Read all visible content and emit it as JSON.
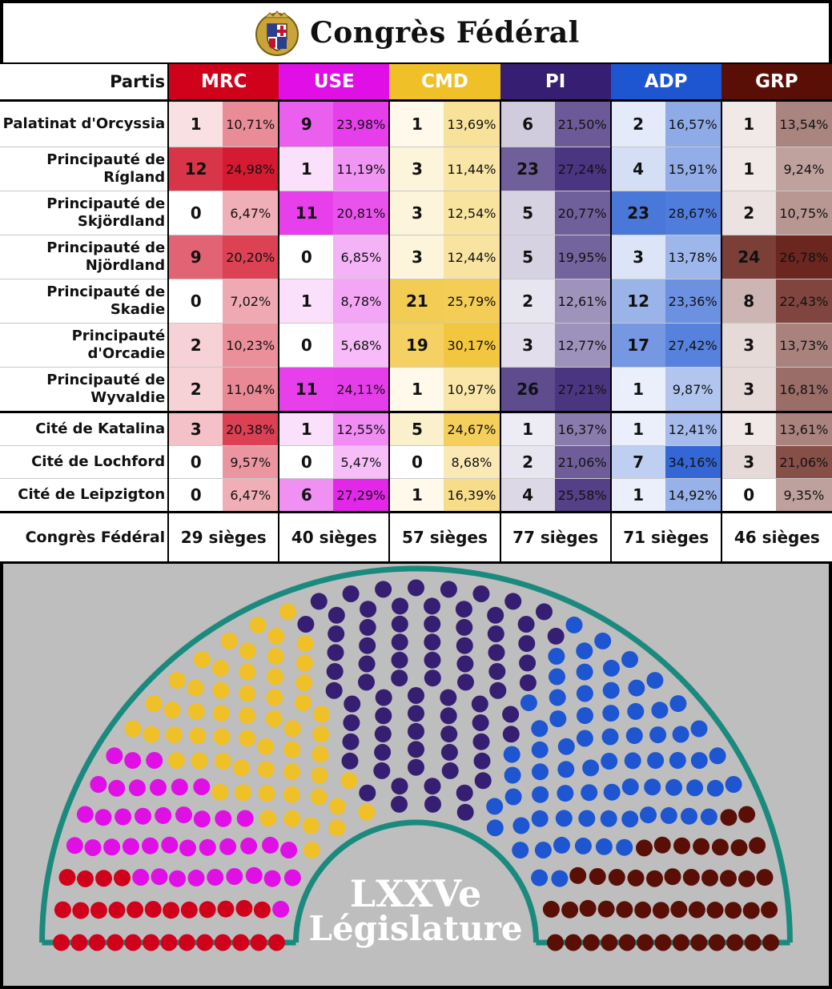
{
  "header": {
    "title": "Congrès Fédéral"
  },
  "table": {
    "corner_label": "Partis",
    "parties": [
      {
        "name": "MRC",
        "color": "#d0021b",
        "seats_bg": "#f7d3d6",
        "pct_bg": "#e4868f"
      },
      {
        "name": "USE",
        "color": "#e00fe6",
        "seats_bg": "#ead2dd",
        "pct_bg": "#c989a8"
      },
      {
        "name": "CMD",
        "color": "#f0c028",
        "seats_bg": "#fbeccb",
        "pct_bg": "#f3d27a"
      },
      {
        "name": "PI",
        "color": "#361f72",
        "seats_bg": "#ddd6ea",
        "pct_bg": "#a594c8"
      },
      {
        "name": "ADP",
        "color": "#1d56d0",
        "seats_bg": "#d3e0f5",
        "pct_bg": "#8aa8e4"
      },
      {
        "name": "GRP",
        "color": "#5a0f06",
        "seats_bg": "#ecd8d5",
        "pct_bg": "#c99b93"
      }
    ],
    "rows": [
      {
        "district": "Palatinat d'Orcyssia",
        "group": "first",
        "seats": [
          "1",
          "9",
          "1",
          "6",
          "2",
          "1"
        ],
        "pcts": [
          "10,71%",
          "23,98%",
          "13,69%",
          "21,50%",
          "16,57%",
          "13,54%"
        ]
      },
      {
        "district": "Principauté de Rígland",
        "group": "prin",
        "seats": [
          "12",
          "1",
          "3",
          "23",
          "4",
          "1"
        ],
        "pcts": [
          "24,98%",
          "11,19%",
          "11,44%",
          "27,24%",
          "15,91%",
          "9,24%"
        ]
      },
      {
        "district": "Principauté de Skjördland",
        "group": "prin",
        "seats": [
          "0",
          "11",
          "3",
          "5",
          "23",
          "2"
        ],
        "pcts": [
          "6,47%",
          "20,81%",
          "12,54%",
          "20,77%",
          "28,67%",
          "10,75%"
        ]
      },
      {
        "district": "Principauté de Njördland",
        "group": "prin",
        "seats": [
          "9",
          "0",
          "3",
          "5",
          "3",
          "24"
        ],
        "pcts": [
          "20,20%",
          "6,85%",
          "12,44%",
          "19,95%",
          "13,78%",
          "26,78%"
        ]
      },
      {
        "district": "Principauté de Skadie",
        "group": "prin",
        "seats": [
          "0",
          "1",
          "21",
          "2",
          "12",
          "8"
        ],
        "pcts": [
          "7,02%",
          "8,78%",
          "25,79%",
          "12,61%",
          "23,36%",
          "22,43%"
        ]
      },
      {
        "district": "Principauté d'Orcadie",
        "group": "prin",
        "seats": [
          "2",
          "0",
          "19",
          "3",
          "17",
          "3"
        ],
        "pcts": [
          "10,23%",
          "5,68%",
          "30,17%",
          "12,77%",
          "27,42%",
          "13,73%"
        ]
      },
      {
        "district": "Principauté de Wyvaldie",
        "group": "prin",
        "seats": [
          "2",
          "11",
          "1",
          "26",
          "1",
          "3"
        ],
        "pcts": [
          "11,04%",
          "24,11%",
          "10,97%",
          "27,21%",
          "9,87%",
          "16,81%"
        ]
      },
      {
        "district": "Cité de Katalina",
        "group": "city",
        "seats": [
          "3",
          "1",
          "5",
          "1",
          "1",
          "1"
        ],
        "pcts": [
          "20,38%",
          "12,55%",
          "24,67%",
          "16,37%",
          "12,41%",
          "13,61%"
        ]
      },
      {
        "district": "Cité de Lochford",
        "group": "city",
        "seats": [
          "0",
          "0",
          "0",
          "2",
          "7",
          "3"
        ],
        "pcts": [
          "9,57%",
          "5,47%",
          "8,68%",
          "21,06%",
          "34,16%",
          "21,06%"
        ]
      },
      {
        "district": "Cité de Leipzigton",
        "group": "city",
        "seats": [
          "0",
          "6",
          "1",
          "4",
          "1",
          "0"
        ],
        "pcts": [
          "6,47%",
          "27,29%",
          "16,39%",
          "25,58%",
          "14,92%",
          "9,35%"
        ]
      }
    ],
    "totals_label": "Congrès Fédéral",
    "totals": [
      "29 sièges",
      "40 sièges",
      "57 sièges",
      "77 sièges",
      "71 sièges",
      "46 sièges"
    ]
  },
  "hemicycle": {
    "legislature_line1": "LXXVe",
    "legislature_line2": "Législature",
    "outline_color": "#1b8a7e",
    "background_color": "#bebebe",
    "party_seats": [
      29,
      40,
      57,
      77,
      71,
      46
    ]
  }
}
